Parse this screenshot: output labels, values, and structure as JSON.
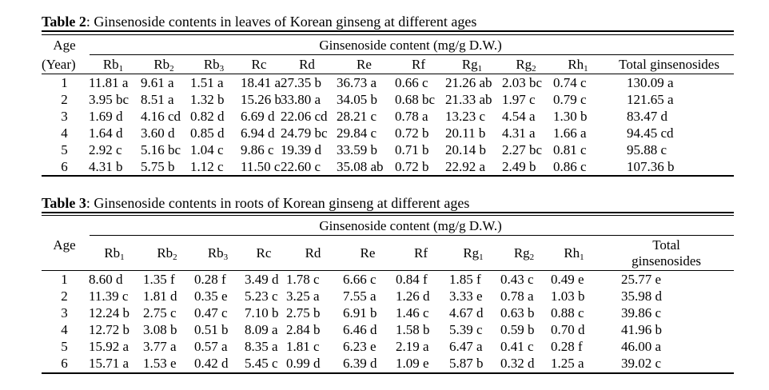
{
  "table2": {
    "caption_bold": "Table 2",
    "caption_rest": ": Ginsenoside contents in leaves of Korean ginseng at different ages",
    "age_label": "Age",
    "year_label": "(Year)",
    "group_header": "Ginsenoside content (mg/g D.W.)",
    "columns": [
      {
        "base": "Rb",
        "sub": "1"
      },
      {
        "base": "Rb",
        "sub": "2"
      },
      {
        "base": "Rb",
        "sub": "3"
      },
      {
        "base": "Rc",
        "sub": ""
      },
      {
        "base": "Rd",
        "sub": ""
      },
      {
        "base": "Re",
        "sub": ""
      },
      {
        "base": "Rf",
        "sub": ""
      },
      {
        "base": "Rg",
        "sub": "1"
      },
      {
        "base": "Rg",
        "sub": "2"
      },
      {
        "base": "Rh",
        "sub": "1"
      }
    ],
    "total_label": "Total ginsenosides",
    "rows": [
      {
        "age": "1",
        "cells": [
          "11.81 a",
          "9.61 a",
          "1.51 a",
          "18.41 a",
          "27.35 b",
          "36.73 a",
          "0.66 c",
          "21.26 ab",
          "2.03 bc",
          "0.74 c",
          "130.09 a"
        ]
      },
      {
        "age": "2",
        "cells": [
          "3.95 bc",
          "8.51 a",
          "1.32 b",
          "15.26 b",
          "33.80 a",
          "34.05 b",
          "0.68 bc",
          "21.33 ab",
          "1.97 c",
          "0.79 c",
          "121.65 a"
        ]
      },
      {
        "age": "3",
        "cells": [
          "1.69 d",
          "4.16 cd",
          "0.82 d",
          "6.69 d",
          "22.06 cd",
          "28.21 c",
          "0.78 a",
          "13.23 c",
          "4.54 a",
          "1.30 b",
          "83.47 d"
        ]
      },
      {
        "age": "4",
        "cells": [
          "1.64 d",
          "3.60 d",
          "0.85 d",
          "6.94 d",
          "24.79 bc",
          "29.84 c",
          "0.72 b",
          "20.11 b",
          "4.31 a",
          "1.66 a",
          "94.45 cd"
        ]
      },
      {
        "age": "5",
        "cells": [
          "2.92 c",
          "5.16 bc",
          "1.04 c",
          "9.86 c",
          "19.39 d",
          "33.59 b",
          "0.71 b",
          "20.14 b",
          "2.27 bc",
          "0.81 c",
          "95.88 c"
        ]
      },
      {
        "age": "6",
        "cells": [
          "4.31 b",
          "5.75 b",
          "1.12 c",
          "11.50 c",
          "22.60 c",
          "35.08 ab",
          "0.72 b",
          "22.92 a",
          "2.49 b",
          "0.86 c",
          "107.36 b"
        ]
      }
    ]
  },
  "table3": {
    "caption_bold": "Table 3",
    "caption_rest": ": Ginsenoside contents in roots of Korean ginseng at different ages",
    "age_label": "Age",
    "group_header": "Ginsenoside content (mg/g D.W.)",
    "columns": [
      {
        "base": "Rb",
        "sub": "1"
      },
      {
        "base": "Rb",
        "sub": "2"
      },
      {
        "base": "Rb",
        "sub": "3"
      },
      {
        "base": "Rc",
        "sub": ""
      },
      {
        "base": "Rd",
        "sub": ""
      },
      {
        "base": "Re",
        "sub": ""
      },
      {
        "base": "Rf",
        "sub": ""
      },
      {
        "base": "Rg",
        "sub": "1"
      },
      {
        "base": "Rg",
        "sub": "2"
      },
      {
        "base": "Rh",
        "sub": "1"
      }
    ],
    "total_label_line1": "Total",
    "total_label_line2": "ginsenosides",
    "rows": [
      {
        "age": "1",
        "cells": [
          "8.60 d",
          "1.35 f",
          "0.28 f",
          "3.49 d",
          "1.78 c",
          "6.66 c",
          "0.84 f",
          "1.85 f",
          "0.43 c",
          "0.49 e",
          "25.77 e"
        ]
      },
      {
        "age": "2",
        "cells": [
          "11.39 c",
          "1.81 d",
          "0.35 e",
          "5.23 c",
          "3.25 a",
          "7.55 a",
          "1.26 d",
          "3.33 e",
          "0.78 a",
          "1.03 b",
          "35.98 d"
        ]
      },
      {
        "age": "3",
        "cells": [
          "12.24 b",
          "2.75 c",
          "0.47 c",
          "7.10 b",
          "2.75 b",
          "6.91 b",
          "1.46 c",
          "4.67 d",
          "0.63 b",
          "0.88 c",
          "39.86 c"
        ]
      },
      {
        "age": "4",
        "cells": [
          "12.72 b",
          "3.08 b",
          "0.51 b",
          "8.09 a",
          "2.84 b",
          "6.46 d",
          "1.58 b",
          "5.39 c",
          "0.59 b",
          "0.70 d",
          "41.96 b"
        ]
      },
      {
        "age": "5",
        "cells": [
          "15.92 a",
          "3.77 a",
          "0.57 a",
          "8.35 a",
          "1.81 c",
          "6.23 e",
          "2.19 a",
          "6.47 a",
          "0.41 c",
          "0.28 f",
          "46.00 a"
        ]
      },
      {
        "age": "6",
        "cells": [
          "15.71 a",
          "1.53 e",
          "0.42 d",
          "5.45 c",
          "0.99 d",
          "6.39 d",
          "1.09 e",
          "5.87 b",
          "0.32 d",
          "1.25 a",
          "39.02 c"
        ]
      }
    ]
  }
}
